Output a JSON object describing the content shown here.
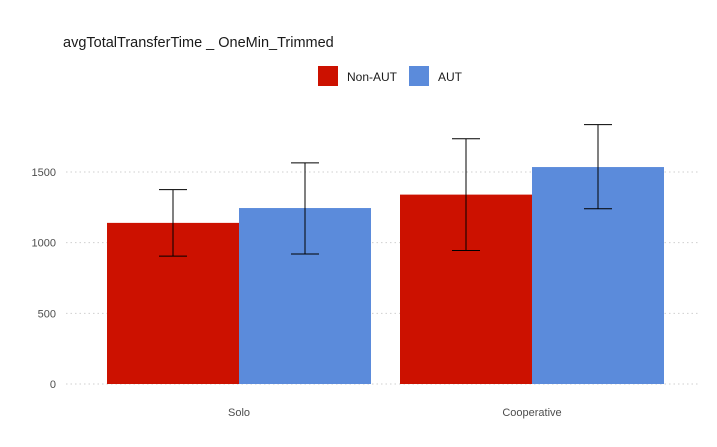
{
  "chart_data": {
    "type": "bar",
    "title": "avgTotalTransferTime _ OneMin_Trimmed",
    "xlabel": "",
    "ylabel": "",
    "categories": [
      "Solo",
      "Cooperative"
    ],
    "series": [
      {
        "name": "Non-AUT",
        "color": "#CC1100",
        "values": [
          1140,
          1340
        ],
        "error_low": [
          905,
          945
        ],
        "error_high": [
          1375,
          1735
        ]
      },
      {
        "name": "AUT",
        "color": "#5B8BDB",
        "values": [
          1245,
          1535
        ],
        "error_low": [
          920,
          1240
        ],
        "error_high": [
          1565,
          1835
        ]
      }
    ],
    "yticks": [
      0,
      500,
      1000,
      1500
    ],
    "ylim": [
      0,
      1900
    ],
    "grid": true,
    "legend_position": "top-center"
  }
}
